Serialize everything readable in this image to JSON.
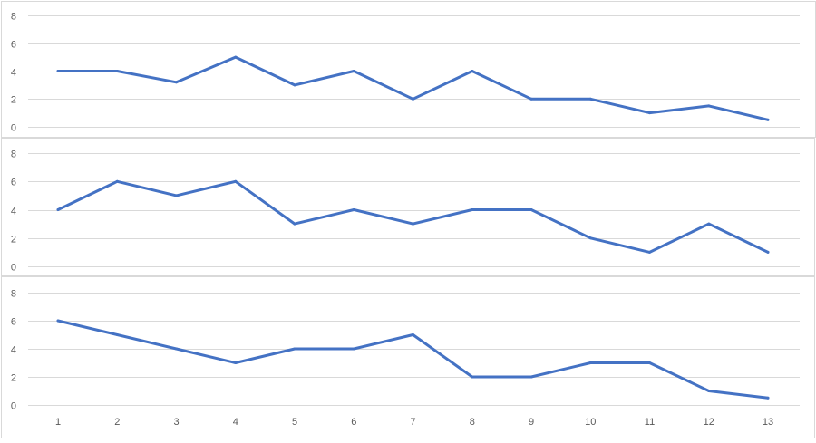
{
  "line_color": "#4472c4",
  "grid_color": "#d9d9d9",
  "chart_data": [
    {
      "type": "line",
      "x": [
        1,
        2,
        3,
        4,
        5,
        6,
        7,
        8,
        9,
        10,
        11,
        12,
        13
      ],
      "values": [
        4,
        4,
        3.2,
        5,
        3,
        4,
        2,
        4,
        2,
        2,
        1,
        1.5,
        0.5
      ],
      "ylim": [
        0,
        8
      ],
      "yticks": [
        "0",
        "2",
        "4",
        "6",
        "8"
      ],
      "show_xticks": false,
      "grid": true
    },
    {
      "type": "line",
      "x": [
        1,
        2,
        3,
        4,
        5,
        6,
        7,
        8,
        9,
        10,
        11,
        12,
        13
      ],
      "values": [
        4,
        6,
        5,
        6,
        3,
        4,
        3,
        4,
        4,
        2,
        1,
        3,
        1
      ],
      "ylim": [
        0,
        8
      ],
      "yticks": [
        "0",
        "2",
        "4",
        "6",
        "8"
      ],
      "show_xticks": false,
      "grid": true
    },
    {
      "type": "line",
      "x": [
        1,
        2,
        3,
        4,
        5,
        6,
        7,
        8,
        9,
        10,
        11,
        12,
        13
      ],
      "values": [
        6,
        5,
        4,
        3,
        4,
        4,
        5,
        2,
        2,
        3,
        3,
        1,
        0.5
      ],
      "ylim": [
        0,
        8
      ],
      "yticks": [
        "0",
        "2",
        "4",
        "6",
        "8"
      ],
      "xticks": [
        "1",
        "2",
        "3",
        "4",
        "5",
        "6",
        "7",
        "8",
        "9",
        "10",
        "11",
        "12",
        "13"
      ],
      "show_xticks": true,
      "grid": true
    }
  ]
}
